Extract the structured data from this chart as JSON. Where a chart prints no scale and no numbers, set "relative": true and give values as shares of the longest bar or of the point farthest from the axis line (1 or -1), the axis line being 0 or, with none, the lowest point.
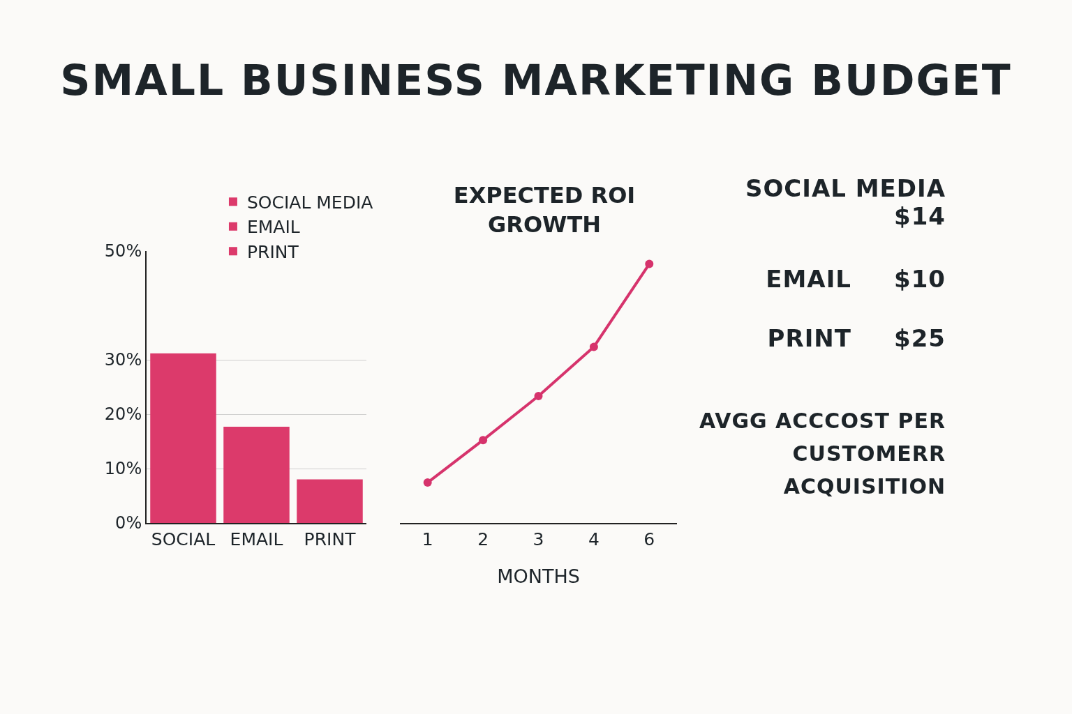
{
  "chart_data": [
    {
      "type": "bar",
      "title": "SMALL BUSINESS MARKETING BUDGET",
      "categories": [
        "SOCIAL",
        "EMAIL",
        "PRINT"
      ],
      "series": [
        {
          "name": "SOCIAL MEDIA",
          "color": "#dc3a6b",
          "values": [
            31.2,
            null,
            null
          ]
        },
        {
          "name": "EMAIL",
          "color": "#dc3a6b",
          "values": [
            null,
            17.7,
            null
          ]
        },
        {
          "name": "PRINT",
          "color": "#dc3a6b",
          "values": [
            null,
            null,
            8
          ]
        }
      ],
      "ylim": [
        0,
        50
      ],
      "yticks": [
        {
          "value": 0,
          "label": "0%"
        },
        {
          "value": 10,
          "label": "10%"
        },
        {
          "value": 20,
          "label": "20%"
        },
        {
          "value": 30,
          "label": "30%"
        },
        {
          "value": 50,
          "label": "50%"
        }
      ],
      "grid": "y",
      "legend": "top"
    },
    {
      "type": "line",
      "title": "EXPECTED ROI GROWTH",
      "xlabel": "MONTHS",
      "categories": [
        "1",
        "2",
        "3",
        "4",
        "6"
      ],
      "series": [
        {
          "color": "#d6336c",
          "values": [
            0.156,
            0.32,
            0.49,
            0.68,
            1
          ]
        }
      ],
      "relative": true,
      "marker": "circle",
      "line_style": "solid"
    },
    {
      "type": "other",
      "annotations": [
        "SOCIAL MEDIA",
        "$14",
        "EMAIL",
        "$10",
        "PRINT",
        "$25",
        "AVGG ACCCOST PER CUSTOMERR ACQUISITION"
      ]
    }
  ]
}
